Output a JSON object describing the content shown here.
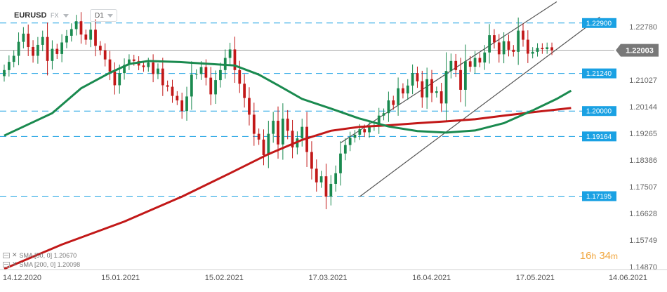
{
  "header": {
    "symbol": "EURUSD",
    "market": "FX",
    "timeframe": "D1"
  },
  "timer": {
    "hours": "16",
    "hours_unit": "h",
    "minutes": "34",
    "minutes_unit": "m"
  },
  "indicators": [
    {
      "label": "SMA [50, 0] 1.20670",
      "color": "#1a8a4f"
    },
    {
      "label": "SMA [200, 0] 1.20098",
      "color": "#c21818"
    }
  ],
  "colors": {
    "bull": "#1a8a4f",
    "bear": "#c21818",
    "sma50": "#1a8a4f",
    "sma200": "#c21818",
    "level_box": "#1aa1e3",
    "current_price_box": "#787878",
    "channel": "#555555"
  },
  "chart_data": {
    "type": "candlestick",
    "symbol": "EURUSD",
    "timeframe": "D1",
    "ylim": [
      1.1487,
      1.2352
    ],
    "y_ticks": [
      "1.22780",
      "1.22003",
      "1.21027",
      "1.20144",
      "1.19265",
      "1.18386",
      "1.17507",
      "1.16628",
      "1.15749",
      "1.14870"
    ],
    "x_ticks": [
      "14.12.2020",
      "15.01.2021",
      "15.02.2021",
      "17.03.2021",
      "16.04.2021",
      "17.05.2021",
      "14.06.2021"
    ],
    "x_range_bars": [
      0,
      127
    ],
    "current_price": {
      "value": 1.22003,
      "label": "1.22003"
    },
    "levels": [
      {
        "value": 1.229,
        "label": "1.22900"
      },
      {
        "value": 1.2124,
        "label": "1.21240"
      },
      {
        "value": 1.2,
        "label": "1.20000"
      },
      {
        "value": 1.19164,
        "label": "1.19164"
      },
      {
        "value": 1.17195,
        "label": "1.17195"
      }
    ],
    "closes": [
      1.2135,
      1.2162,
      1.2182,
      1.2228,
      1.2255,
      1.2211,
      1.2182,
      1.2218,
      1.2244,
      1.2165,
      1.2205,
      1.2188,
      1.2226,
      1.2248,
      1.227,
      1.2296,
      1.2252,
      1.2235,
      1.2268,
      1.2215,
      1.22,
      1.217,
      1.213,
      1.2085,
      1.2125,
      1.2152,
      1.217,
      1.2165,
      1.215,
      1.2145,
      1.216,
      1.2122,
      1.214,
      1.2085,
      1.208,
      1.205,
      1.2035,
      1.2,
      1.2048,
      1.212,
      1.2122,
      1.2145,
      1.211,
      1.2055,
      1.2102,
      1.2135,
      1.2175,
      1.2203,
      1.2135,
      1.209,
      1.2043,
      1.1988,
      1.1925,
      1.1906,
      1.1855,
      1.1925,
      1.1968,
      1.189,
      1.1975,
      1.1935,
      1.188,
      1.191,
      1.1948,
      1.1865,
      1.181,
      1.1765,
      1.1785,
      1.1718,
      1.176,
      1.1795,
      1.186,
      1.1888,
      1.1912,
      1.1922,
      1.194,
      1.193,
      1.195,
      1.195,
      1.1985,
      1.1993,
      1.2035,
      1.202,
      1.2075,
      1.2058,
      1.2084,
      1.2125,
      1.2098,
      1.2045,
      1.2105,
      1.206,
      1.2065,
      1.2025,
      1.2132,
      1.2165,
      1.2135,
      1.207,
      1.2164,
      1.2146,
      1.2175,
      1.216,
      1.2193,
      1.225,
      1.2226,
      1.2187,
      1.223,
      1.2202,
      1.2195,
      1.2265,
      1.2235,
      1.2189,
      1.2195,
      1.2208,
      1.2204,
      1.221,
      1.22
    ],
    "sma50": [
      [
        0,
        1.1919
      ],
      [
        10,
        1.1993
      ],
      [
        16,
        1.2075
      ],
      [
        22,
        1.2126
      ],
      [
        26,
        1.2155
      ],
      [
        30,
        1.2165
      ],
      [
        36,
        1.2162
      ],
      [
        42,
        1.2156
      ],
      [
        48,
        1.215
      ],
      [
        53,
        1.212
      ],
      [
        57,
        1.2085
      ],
      [
        62,
        1.204
      ],
      [
        68,
        1.2008
      ],
      [
        74,
        1.1975
      ],
      [
        80,
        1.1949
      ],
      [
        86,
        1.1934
      ],
      [
        92,
        1.1929
      ],
      [
        98,
        1.1936
      ],
      [
        104,
        1.196
      ],
      [
        110,
        1.2002
      ],
      [
        115,
        1.204
      ],
      [
        118,
        1.2067
      ]
    ],
    "sma200": [
      [
        0,
        1.148
      ],
      [
        12,
        1.156
      ],
      [
        25,
        1.1636
      ],
      [
        37,
        1.1718
      ],
      [
        47,
        1.1795
      ],
      [
        55,
        1.1858
      ],
      [
        62,
        1.1905
      ],
      [
        68,
        1.1935
      ],
      [
        74,
        1.1948
      ],
      [
        80,
        1.1953
      ],
      [
        86,
        1.196
      ],
      [
        92,
        1.1966
      ],
      [
        98,
        1.1973
      ],
      [
        104,
        1.1985
      ],
      [
        110,
        1.1996
      ],
      [
        118,
        1.201
      ]
    ],
    "channel": {
      "lower": [
        [
          74,
          1.1718
        ],
        [
          124,
          1.231
        ]
      ],
      "upper": [
        [
          70,
          1.1895
        ],
        [
          115,
          1.236
        ]
      ]
    }
  }
}
